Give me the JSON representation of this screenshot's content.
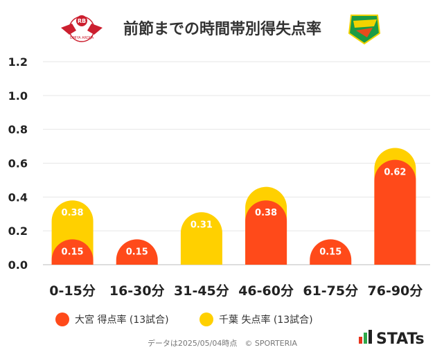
{
  "chart_data": {
    "type": "bar",
    "title": "前節までの時間帯別得失点率",
    "categories": [
      "0-15分",
      "16-30分",
      "31-45分",
      "46-60分",
      "61-75分",
      "76-90分"
    ],
    "series": [
      {
        "name": "千葉 失点率 (13試合)",
        "color": "#FFD000",
        "values": [
          0.38,
          0.0,
          0.31,
          0.46,
          0.0,
          0.69
        ],
        "labels": [
          "0.38",
          "",
          "0.31",
          "",
          "",
          ""
        ]
      },
      {
        "name": "大宮 得点率 (13試合)",
        "color": "#FF4A1A",
        "values": [
          0.15,
          0.15,
          0.0,
          0.38,
          0.15,
          0.62
        ],
        "labels": [
          "0.15",
          "0.15",
          "",
          "0.38",
          "0.15",
          "0.62"
        ]
      }
    ],
    "yticks": [
      "0.0",
      "0.2",
      "0.4",
      "0.6",
      "0.8",
      "1.0",
      "1.2"
    ],
    "ylim": [
      0,
      1.2
    ],
    "grid": true,
    "legend_position": "bottom-left"
  },
  "header": {
    "left_logo_text": "RB",
    "left_logo_subtext": "OMIYA ARDIJA"
  },
  "footer": {
    "note": "データは2025/05/04時点　© SPORTERIA",
    "brand": "STATs"
  }
}
